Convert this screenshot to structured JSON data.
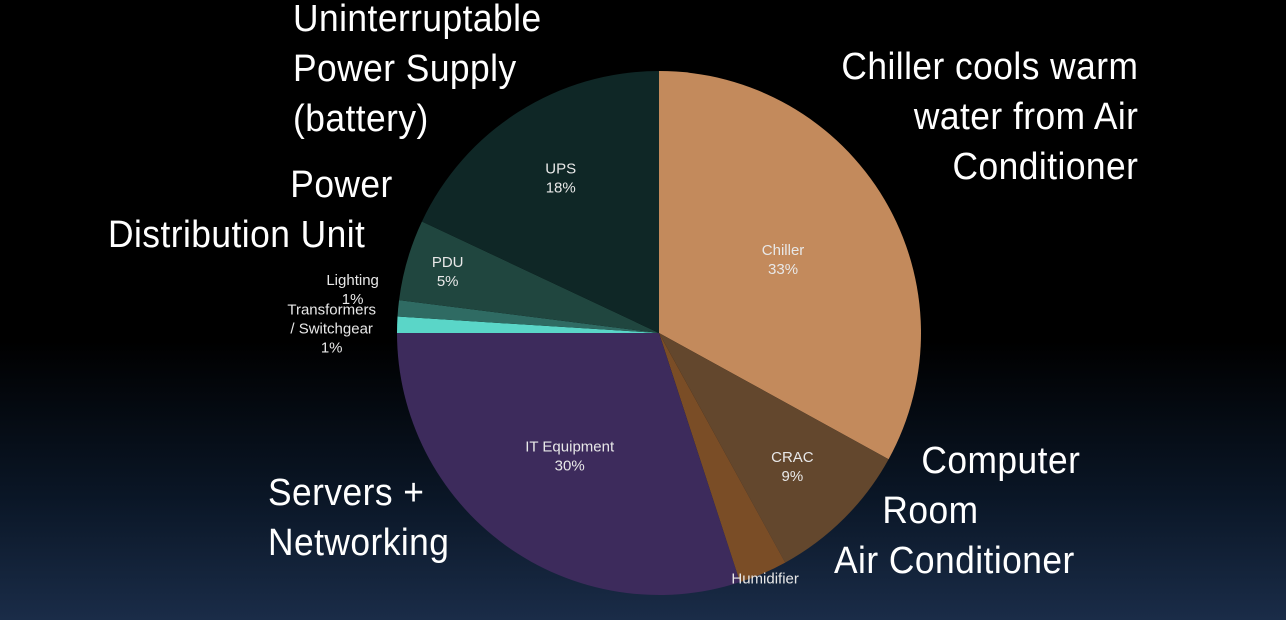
{
  "chart_data": {
    "type": "pie",
    "title": "",
    "slices": [
      {
        "label": "Chiller",
        "value": 33,
        "value_label": "33%",
        "color": "#c38a5c"
      },
      {
        "label": "CRAC",
        "value": 9,
        "value_label": "9%",
        "color": "#63472d"
      },
      {
        "label": "Humidifier",
        "value": 3,
        "value_label": "",
        "color": "#7a4d26"
      },
      {
        "label": "IT Equipment",
        "value": 30,
        "value_label": "30%",
        "color": "#3d2b5c"
      },
      {
        "label": "Transformers / Switchgear",
        "value": 1,
        "value_label": "1%",
        "color": "#5ad6c8"
      },
      {
        "label": "Lighting",
        "value": 1,
        "value_label": "1%",
        "color": "#2f6b63"
      },
      {
        "label": "PDU",
        "value": 5,
        "value_label": "5%",
        "color": "#20463f"
      },
      {
        "label": "UPS",
        "value": 18,
        "value_label": "18%",
        "color": "#0f2726"
      }
    ],
    "annotations": [
      {
        "id": "ups",
        "lines": [
          "Uninterruptable",
          "Power Supply",
          "(battery)"
        ]
      },
      {
        "id": "pdu",
        "lines": [
          "Power",
          "Distribution Unit"
        ]
      },
      {
        "id": "chiller",
        "lines": [
          "Chiller cools warm",
          "water from Air",
          "Conditioner"
        ]
      },
      {
        "id": "crac",
        "lines": [
          "Computer",
          "Room",
          "Air Conditioner"
        ]
      },
      {
        "id": "it",
        "lines": [
          "Servers +",
          "Networking"
        ]
      }
    ]
  }
}
